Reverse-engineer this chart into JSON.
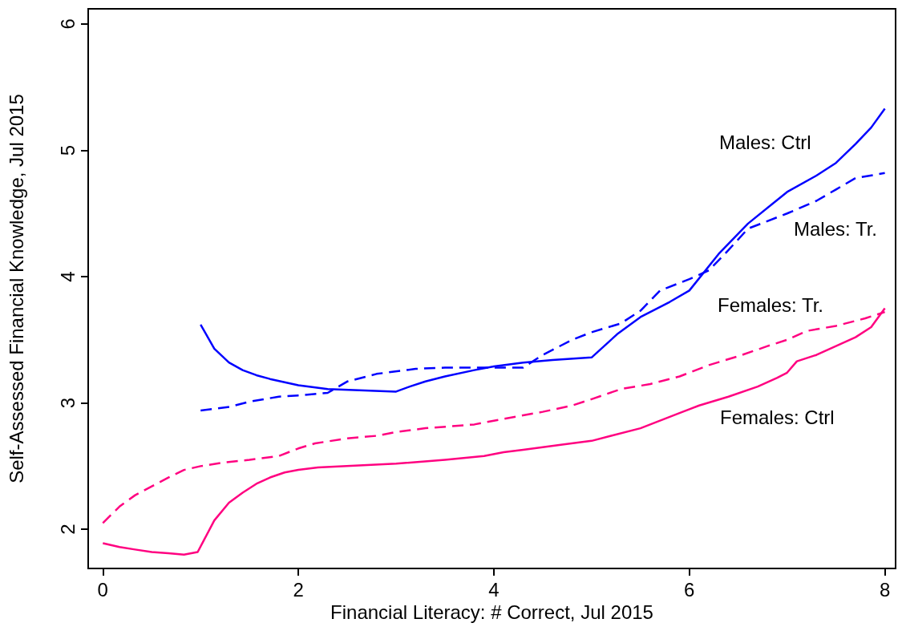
{
  "chart_data": {
    "type": "line",
    "xlabel": "Financial Literacy: # Correct, Jul 2015",
    "ylabel": "Self-Assessed Financial Knowledge, Jul 2015",
    "xlim": [
      -0.15,
      8.11
    ],
    "xticks": [
      0,
      2,
      4,
      6,
      8
    ],
    "ylim": [
      1.69,
      6.12
    ],
    "yticks": [
      2,
      3,
      4,
      5,
      6
    ],
    "grid": false,
    "marker": "none",
    "series": [
      {
        "name": "Males: Ctrl",
        "color": "#0000ff",
        "line_style": "solid",
        "x": [
          1,
          1.14,
          1.29,
          1.43,
          1.57,
          1.71,
          2.0,
          2.3,
          3.0,
          3.14,
          3.3,
          3.5,
          3.8,
          4.0,
          4.3,
          4.6,
          5.0,
          5.27,
          5.5,
          5.8,
          6.0,
          6.3,
          6.6,
          7.0,
          7.3,
          7.5,
          7.7,
          7.86,
          8.0
        ],
        "values": [
          3.62,
          3.43,
          3.32,
          3.26,
          3.22,
          3.19,
          3.14,
          3.11,
          3.09,
          3.13,
          3.17,
          3.21,
          3.26,
          3.29,
          3.32,
          3.34,
          3.36,
          3.55,
          3.68,
          3.8,
          3.89,
          4.18,
          4.42,
          4.67,
          4.8,
          4.9,
          5.05,
          5.18,
          5.33
        ]
      },
      {
        "name": "Males: Tr.",
        "color": "#0000ff",
        "line_style": "dashed",
        "x": [
          1,
          1.3,
          1.5,
          1.8,
          2.0,
          2.3,
          2.5,
          2.8,
          3.2,
          3.5,
          4.0,
          4.3,
          4.5,
          4.8,
          5.0,
          5.3,
          5.5,
          5.7,
          6.0,
          6.2,
          6.4,
          6.6,
          7.0,
          7.3,
          7.5,
          7.7,
          8.0
        ],
        "values": [
          2.94,
          2.97,
          3.01,
          3.05,
          3.06,
          3.08,
          3.17,
          3.23,
          3.27,
          3.28,
          3.28,
          3.28,
          3.38,
          3.5,
          3.56,
          3.63,
          3.73,
          3.89,
          3.98,
          4.05,
          4.21,
          4.38,
          4.5,
          4.6,
          4.69,
          4.78,
          4.82
        ]
      },
      {
        "name": "Females: Tr.",
        "color": "#ff0080",
        "line_style": "dashed",
        "x": [
          0,
          0.17,
          0.33,
          0.5,
          0.67,
          0.83,
          1.0,
          1.25,
          1.5,
          1.8,
          2.0,
          2.17,
          2.5,
          2.8,
          3.0,
          3.3,
          3.8,
          4.0,
          4.5,
          4.8,
          5.0,
          5.3,
          5.6,
          5.9,
          6.2,
          6.5,
          6.8,
          7.0,
          7.2,
          7.5,
          7.8,
          8.0
        ],
        "values": [
          2.05,
          2.18,
          2.27,
          2.34,
          2.41,
          2.47,
          2.5,
          2.53,
          2.55,
          2.58,
          2.64,
          2.68,
          2.72,
          2.74,
          2.77,
          2.8,
          2.83,
          2.86,
          2.93,
          2.98,
          3.03,
          3.11,
          3.15,
          3.21,
          3.3,
          3.37,
          3.45,
          3.5,
          3.57,
          3.61,
          3.67,
          3.72
        ]
      },
      {
        "name": "Females: Ctrl",
        "color": "#ff0080",
        "line_style": "solid",
        "x": [
          0,
          0.17,
          0.33,
          0.5,
          0.67,
          0.83,
          0.97,
          1.14,
          1.29,
          1.43,
          1.57,
          1.71,
          1.86,
          2.0,
          2.2,
          3.0,
          3.5,
          3.9,
          4.1,
          4.3,
          4.7,
          5.0,
          5.2,
          5.5,
          5.9,
          6.1,
          6.4,
          6.7,
          6.9,
          7.0,
          7.1,
          7.3,
          7.5,
          7.7,
          7.86,
          8.0
        ],
        "values": [
          1.89,
          1.86,
          1.84,
          1.82,
          1.81,
          1.8,
          1.82,
          2.07,
          2.21,
          2.29,
          2.36,
          2.41,
          2.45,
          2.47,
          2.49,
          2.52,
          2.55,
          2.58,
          2.61,
          2.63,
          2.67,
          2.7,
          2.74,
          2.8,
          2.92,
          2.98,
          3.05,
          3.13,
          3.2,
          3.24,
          3.33,
          3.38,
          3.45,
          3.52,
          3.6,
          3.75
        ]
      }
    ]
  }
}
